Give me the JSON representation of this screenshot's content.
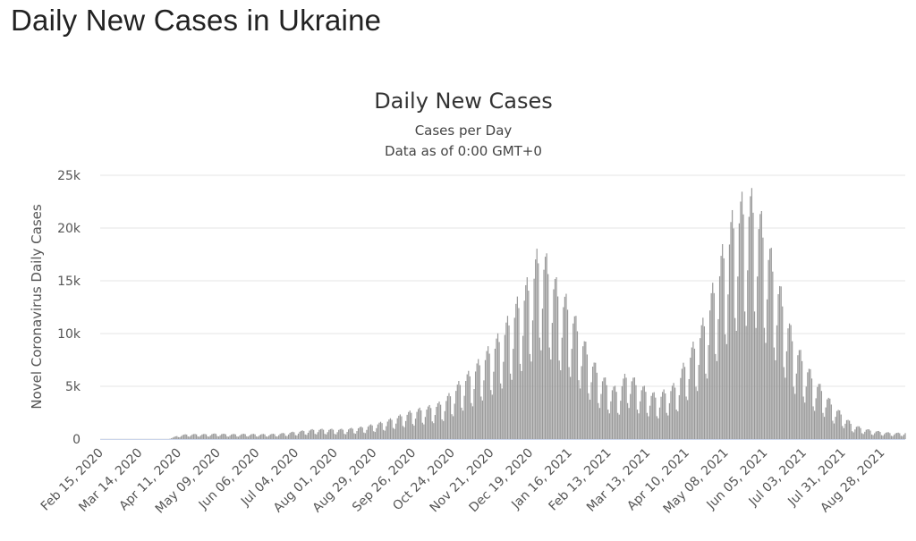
{
  "page": {
    "title": "Daily New Cases in Ukraine"
  },
  "colors": {
    "bar": "#999999",
    "grid": "#e6e6e6",
    "axis": "#ccd6eb"
  },
  "chart_data": {
    "type": "bar",
    "title": "Daily New Cases",
    "subtitle": "Cases per Day",
    "subtitle2": "Data as of 0:00 GMT+0",
    "ylabel": "Novel Coronavirus Daily Cases",
    "xlabel": "",
    "ylim": [
      0,
      25000
    ],
    "grid": true,
    "y_ticks": [
      {
        "value": 0,
        "label": "0"
      },
      {
        "value": 5000,
        "label": "5k"
      },
      {
        "value": 10000,
        "label": "10k"
      },
      {
        "value": 15000,
        "label": "15k"
      },
      {
        "value": 20000,
        "label": "20k"
      },
      {
        "value": 25000,
        "label": "25k"
      }
    ],
    "x_range": [
      "2020-02-15",
      "2021-09-14"
    ],
    "x_ticks": [
      {
        "date": "2020-02-15",
        "label": "Feb 15, 2020"
      },
      {
        "date": "2020-03-14",
        "label": "Mar 14, 2020"
      },
      {
        "date": "2020-04-11",
        "label": "Apr 11, 2020"
      },
      {
        "date": "2020-05-09",
        "label": "May 09, 2020"
      },
      {
        "date": "2020-06-06",
        "label": "Jun 06, 2020"
      },
      {
        "date": "2020-07-04",
        "label": "Jul 04, 2020"
      },
      {
        "date": "2020-08-01",
        "label": "Aug 01, 2020"
      },
      {
        "date": "2020-08-29",
        "label": "Aug 29, 2020"
      },
      {
        "date": "2020-09-26",
        "label": "Sep 26, 2020"
      },
      {
        "date": "2020-10-24",
        "label": "Oct 24, 2020"
      },
      {
        "date": "2020-11-21",
        "label": "Nov 21, 2020"
      },
      {
        "date": "2020-12-19",
        "label": "Dec 19, 2020"
      },
      {
        "date": "2021-01-16",
        "label": "Jan 16, 2021"
      },
      {
        "date": "2021-02-13",
        "label": "Feb 13, 2021"
      },
      {
        "date": "2021-03-13",
        "label": "Mar 13, 2021"
      },
      {
        "date": "2021-04-10",
        "label": "Apr 10, 2021"
      },
      {
        "date": "2021-05-08",
        "label": "May 08, 2021"
      },
      {
        "date": "2021-06-05",
        "label": "Jun 05, 2021"
      },
      {
        "date": "2021-07-03",
        "label": "Jul 03, 2021"
      },
      {
        "date": "2021-07-31",
        "label": "Jul 31, 2021"
      },
      {
        "date": "2021-08-28",
        "label": "Aug 28, 2021"
      }
    ],
    "series_weekly": {
      "name": "",
      "start": "2020-02-15",
      "step_days": 7,
      "values": [
        0,
        0,
        0,
        0,
        0,
        0,
        0,
        0,
        300,
        400,
        400,
        400,
        450,
        400,
        400,
        420,
        400,
        400,
        420,
        500,
        600,
        700,
        800,
        800,
        800,
        800,
        900,
        1000,
        1200,
        1400,
        1700,
        2000,
        2300,
        2500,
        2700,
        3000,
        3800,
        4800,
        5500,
        6500,
        7500,
        8500,
        10000,
        11500,
        13000,
        15500,
        14000,
        12000,
        11000,
        9000,
        7000,
        5500,
        4500,
        4000,
        5500,
        4500,
        4000,
        3500,
        4000,
        4500,
        6500,
        8000,
        10000,
        13000,
        16000,
        18500,
        19500,
        19500,
        17000,
        14000,
        11000,
        8000,
        6500,
        5000,
        4000,
        2800,
        2000,
        1200,
        900,
        700,
        600,
        500,
        500,
        550,
        600,
        650,
        800,
        900,
        1000,
        1100,
        1300,
        1500,
        1800,
        2000
      ]
    }
  }
}
